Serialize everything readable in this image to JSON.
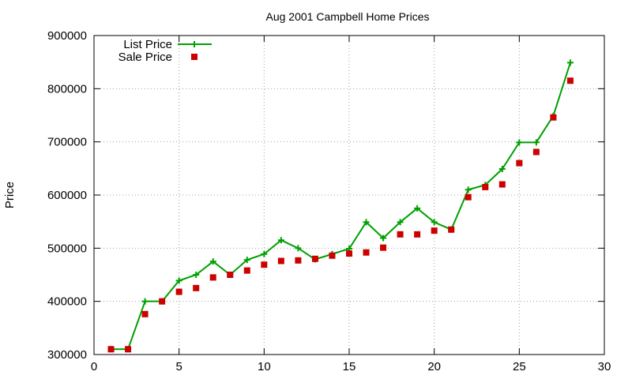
{
  "chart_data": {
    "type": "line",
    "title": "Aug 2001 Campbell Home Prices",
    "xlabel": "",
    "ylabel": "Price",
    "xlim": [
      0,
      30
    ],
    "ylim": [
      300000,
      900000
    ],
    "xticks": [
      0,
      5,
      10,
      15,
      20,
      25,
      30
    ],
    "yticks": [
      300000,
      400000,
      500000,
      600000,
      700000,
      800000,
      900000
    ],
    "grid": true,
    "legend_position": "top-left",
    "x": [
      1,
      2,
      3,
      4,
      5,
      6,
      7,
      8,
      9,
      10,
      11,
      12,
      13,
      14,
      15,
      16,
      17,
      18,
      19,
      20,
      21,
      22,
      23,
      24,
      25,
      26,
      27,
      28
    ],
    "series": [
      {
        "name": "List Price",
        "style": "linespoints",
        "marker": "plus",
        "color": "#00a000",
        "values": [
          310000,
          310000,
          400000,
          400000,
          439000,
          450000,
          475000,
          450000,
          478000,
          489000,
          515000,
          500000,
          479000,
          489000,
          499000,
          549000,
          519000,
          549000,
          575000,
          549000,
          535000,
          610000,
          619000,
          649000,
          699000,
          699000,
          749000,
          849000
        ]
      },
      {
        "name": "Sale Price",
        "style": "points",
        "marker": "square",
        "color": "#cc0000",
        "values": [
          310000,
          310000,
          376000,
          400000,
          418000,
          425000,
          445000,
          450000,
          458000,
          469000,
          476000,
          477000,
          480000,
          486000,
          490000,
          492000,
          501000,
          526000,
          526000,
          533000,
          535000,
          596000,
          615000,
          620000,
          660000,
          681000,
          746000,
          815000
        ]
      }
    ]
  }
}
